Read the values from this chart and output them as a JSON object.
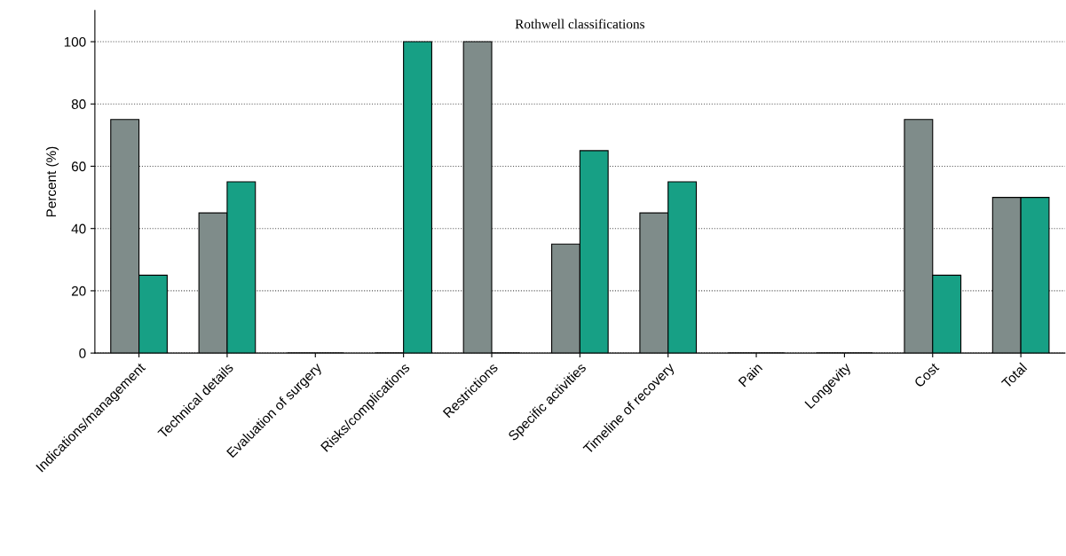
{
  "chart_data": {
    "type": "bar",
    "title": "Rothwell classifications",
    "ylabel": "Percent (%)",
    "categories": [
      "Indications/management",
      "Technical details",
      "Evaluation of surgery",
      "Risks/complications",
      "Restrictions",
      "Specific activities",
      "Timeline of recovery",
      "Pain",
      "Longevity",
      "Cost",
      "Total"
    ],
    "series": [
      {
        "color": "#7f8c8a",
        "values": [
          75,
          45,
          0,
          0,
          100,
          35,
          45,
          0,
          0,
          75,
          50
        ]
      },
      {
        "color": "#17a085",
        "values": [
          25,
          55,
          0,
          100,
          0,
          65,
          55,
          0,
          0,
          25,
          50
        ]
      }
    ],
    "ylim": [
      0,
      110
    ],
    "yticks": [
      0,
      20,
      40,
      60,
      80,
      100
    ],
    "grid": "y"
  }
}
